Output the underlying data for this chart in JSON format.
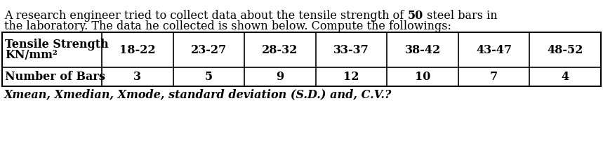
{
  "line1_pre": "A research engineer tried to collect data about the tensile strength of ",
  "line1_bold": "50",
  "line1_post": " steel bars in",
  "line2": "the laboratory. The data he collected is shown below. Compute the followings:",
  "row1_header_line1": "Tensile Strength",
  "row1_header_line2": "KN/mm²",
  "row1_values": [
    "18-22",
    "23-27",
    "28-32",
    "33-37",
    "38-42",
    "43-47",
    "48-52"
  ],
  "row2_header": "Number of Bars",
  "row2_values": [
    "3",
    "5",
    "9",
    "12",
    "10",
    "7",
    "4"
  ],
  "footer": "Xmean, Xmedian, Xmode, standard deviation (S.D.) and, C.V.?",
  "bg_color": "#ffffff",
  "border_color": "#000000",
  "text_color": "#000000",
  "font_size": 11.5,
  "table_font_size": 11.5,
  "footer_font_size": 11.5
}
